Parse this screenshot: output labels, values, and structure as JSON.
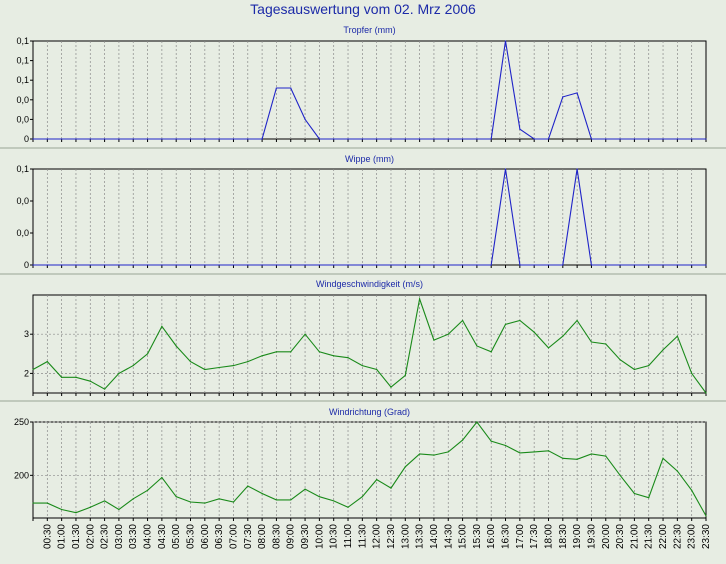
{
  "title": "Tagesauswertung vom 02. Mrz 2006",
  "x_labels": [
    "00:30",
    "01:00",
    "01:30",
    "02:00",
    "02:30",
    "03:00",
    "03:30",
    "04:00",
    "04:30",
    "05:00",
    "05:30",
    "06:00",
    "06:30",
    "07:00",
    "07:30",
    "08:00",
    "08:30",
    "09:00",
    "09:30",
    "10:00",
    "10:30",
    "11:00",
    "11:30",
    "12:00",
    "12:30",
    "13:00",
    "13:30",
    "14:00",
    "14:30",
    "15:00",
    "15:30",
    "16:00",
    "16:30",
    "17:00",
    "17:30",
    "18:00",
    "18:30",
    "19:00",
    "19:30",
    "20:00",
    "20:30",
    "21:00",
    "21:30",
    "22:00",
    "22:30",
    "23:00",
    "23:30"
  ],
  "colors": {
    "background": "#e7ede3",
    "title": "#1c2aa8",
    "rain": "#1f23c8",
    "wind": "#1a8a1a"
  },
  "chart_data": [
    {
      "type": "line",
      "title": "Tropfer (mm)",
      "x": [
        "00:00",
        "00:30",
        "01:00",
        "01:30",
        "02:00",
        "02:30",
        "03:00",
        "03:30",
        "04:00",
        "04:30",
        "05:00",
        "05:30",
        "06:00",
        "06:30",
        "07:00",
        "07:30",
        "08:00",
        "08:30",
        "09:00",
        "09:30",
        "10:00",
        "10:30",
        "11:00",
        "11:30",
        "12:00",
        "12:30",
        "13:00",
        "13:30",
        "14:00",
        "14:30",
        "15:00",
        "15:30",
        "16:00",
        "16:30",
        "17:00",
        "17:30",
        "18:00",
        "18:30",
        "19:00",
        "19:30",
        "20:00",
        "20:30",
        "21:00",
        "21:30",
        "22:00",
        "22:30",
        "23:00",
        "23:30"
      ],
      "series": [
        {
          "values": [
            0,
            0,
            0,
            0,
            0,
            0,
            0,
            0,
            0,
            0,
            0,
            0,
            0,
            0,
            0,
            0,
            0,
            0.052,
            0.052,
            0.02,
            0,
            0,
            0,
            0,
            0,
            0,
            0,
            0,
            0,
            0,
            0,
            0,
            0,
            0.1,
            0.01,
            0,
            0,
            0.043,
            0.047,
            0,
            0,
            0,
            0,
            0,
            0,
            0,
            0,
            0
          ]
        }
      ],
      "ylim": [
        0,
        0.1
      ],
      "yticks": [
        "0",
        "0,0",
        "0,0",
        "0,1",
        "0,1",
        "0,1"
      ],
      "color": "#1f23c8"
    },
    {
      "type": "line",
      "title": "Wippe (mm)",
      "x": [
        "00:00",
        "00:30",
        "01:00",
        "01:30",
        "02:00",
        "02:30",
        "03:00",
        "03:30",
        "04:00",
        "04:30",
        "05:00",
        "05:30",
        "06:00",
        "06:30",
        "07:00",
        "07:30",
        "08:00",
        "08:30",
        "09:00",
        "09:30",
        "10:00",
        "10:30",
        "11:00",
        "11:30",
        "12:00",
        "12:30",
        "13:00",
        "13:30",
        "14:00",
        "14:30",
        "15:00",
        "15:30",
        "16:00",
        "16:30",
        "17:00",
        "17:30",
        "18:00",
        "18:30",
        "19:00",
        "19:30",
        "20:00",
        "20:30",
        "21:00",
        "21:30",
        "22:00",
        "22:30",
        "23:00",
        "23:30"
      ],
      "series": [
        {
          "values": [
            0,
            0,
            0,
            0,
            0,
            0,
            0,
            0,
            0,
            0,
            0,
            0,
            0,
            0,
            0,
            0,
            0,
            0,
            0,
            0,
            0,
            0,
            0,
            0,
            0,
            0,
            0,
            0,
            0,
            0,
            0,
            0,
            0,
            0.1,
            0,
            0,
            0,
            0,
            0.1,
            0,
            0,
            0,
            0,
            0,
            0,
            0,
            0,
            0
          ]
        }
      ],
      "ylim": [
        0,
        0.1
      ],
      "yticks": [
        "0",
        "0,0",
        "0,0",
        "0,1"
      ],
      "color": "#1f23c8"
    },
    {
      "type": "line",
      "title": "Windgeschwindigkeit (m/s)",
      "x": [
        "00:00",
        "00:30",
        "01:00",
        "01:30",
        "02:00",
        "02:30",
        "03:00",
        "03:30",
        "04:00",
        "04:30",
        "05:00",
        "05:30",
        "06:00",
        "06:30",
        "07:00",
        "07:30",
        "08:00",
        "08:30",
        "09:00",
        "09:30",
        "10:00",
        "10:30",
        "11:00",
        "11:30",
        "12:00",
        "12:30",
        "13:00",
        "13:30",
        "14:00",
        "14:30",
        "15:00",
        "15:30",
        "16:00",
        "16:30",
        "17:00",
        "17:30",
        "18:00",
        "18:30",
        "19:00",
        "19:30",
        "20:00",
        "20:30",
        "21:00",
        "21:30",
        "22:00",
        "22:30",
        "23:00",
        "23:30"
      ],
      "series": [
        {
          "values": [
            2.1,
            2.3,
            1.9,
            1.9,
            1.8,
            1.6,
            2.0,
            2.2,
            2.5,
            3.2,
            2.7,
            2.3,
            2.1,
            2.15,
            2.2,
            2.3,
            2.45,
            2.55,
            2.55,
            3.0,
            2.55,
            2.45,
            2.4,
            2.2,
            2.1,
            1.65,
            1.95,
            3.9,
            2.85,
            3.0,
            3.35,
            2.7,
            2.55,
            3.25,
            3.35,
            3.05,
            2.65,
            2.95,
            3.35,
            2.8,
            2.75,
            2.35,
            2.1,
            2.2,
            2.6,
            2.95,
            2.0,
            1.5
          ]
        }
      ],
      "ylim": [
        1.5,
        4
      ],
      "yticks": [
        "2",
        "3"
      ],
      "color": "#1a8a1a"
    },
    {
      "type": "line",
      "title": "Windrichtung (Grad)",
      "x": [
        "00:00",
        "00:30",
        "01:00",
        "01:30",
        "02:00",
        "02:30",
        "03:00",
        "03:30",
        "04:00",
        "04:30",
        "05:00",
        "05:30",
        "06:00",
        "06:30",
        "07:00",
        "07:30",
        "08:00",
        "08:30",
        "09:00",
        "09:30",
        "10:00",
        "10:30",
        "11:00",
        "11:30",
        "12:00",
        "12:30",
        "13:00",
        "13:30",
        "14:00",
        "14:30",
        "15:00",
        "15:30",
        "16:00",
        "16:30",
        "17:00",
        "17:30",
        "18:00",
        "18:30",
        "19:00",
        "19:30",
        "20:00",
        "20:30",
        "21:00",
        "21:30",
        "22:00",
        "22:30",
        "23:00",
        "23:30"
      ],
      "series": [
        {
          "values": [
            174,
            174,
            168,
            165,
            170,
            176,
            168,
            178,
            186,
            198,
            180,
            175,
            174,
            178,
            175,
            190,
            183,
            177,
            177,
            187,
            180,
            176,
            170,
            180,
            196,
            188,
            208,
            220,
            219,
            222,
            233,
            250,
            232,
            228,
            221,
            222,
            223,
            216,
            215,
            220,
            218,
            200,
            183,
            179,
            216,
            204,
            186,
            162
          ]
        }
      ],
      "ylim": [
        160,
        250
      ],
      "yticks": [
        "200",
        "250"
      ],
      "color": "#1a8a1a"
    }
  ]
}
